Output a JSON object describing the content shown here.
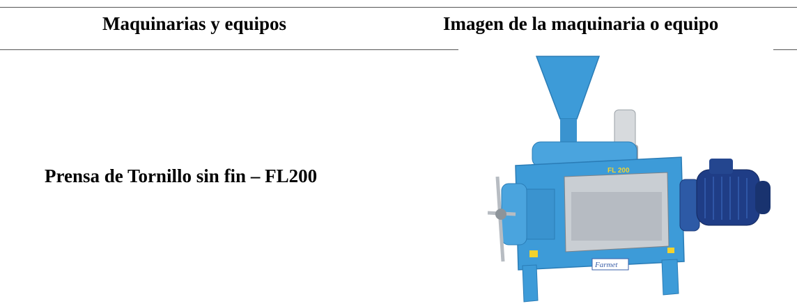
{
  "table": {
    "headers": [
      "Maquinarias y equipos",
      "Imagen de la maquinaria o equipo"
    ],
    "rows": [
      {
        "name": "Prensa de Tornillo sin fin – FL200",
        "image": {
          "model_label": "FL 200",
          "brand_label": "Farmet",
          "icon": "screw-press-machine-image",
          "colors": {
            "body": "#3d9bd8",
            "motor": "#1f3d86",
            "steel": "#b7bcc2"
          }
        }
      }
    ]
  }
}
